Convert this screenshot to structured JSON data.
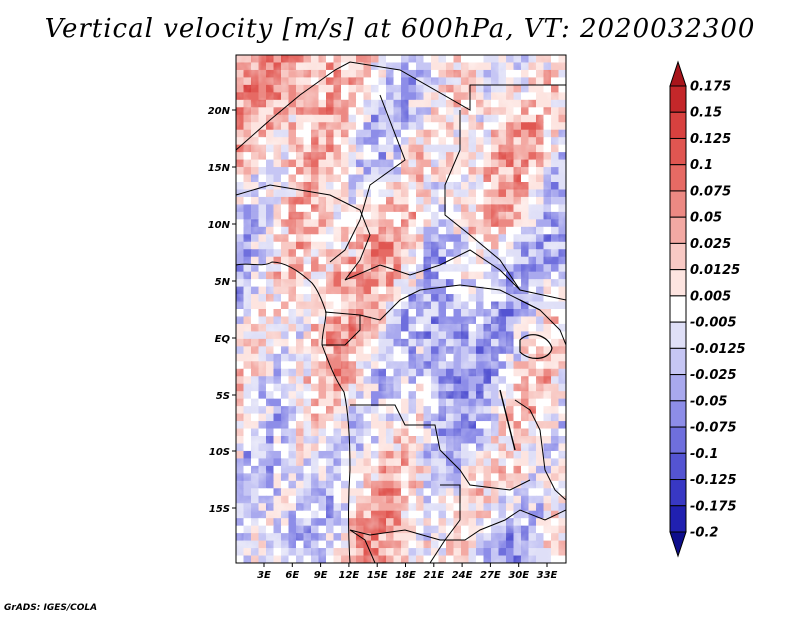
{
  "title": "Vertical velocity [m/s] at 600hPa, VT: 2020032300",
  "credit": "GrADS: IGES/COLA",
  "map": {
    "lat_ticks": [
      "20N",
      "15N",
      "10N",
      "5N",
      "EQ",
      "5S",
      "10S",
      "15S"
    ],
    "lon_ticks": [
      "3E",
      "6E",
      "9E",
      "12E",
      "15E",
      "18E",
      "21E",
      "24E",
      "27E",
      "30E",
      "33E"
    ],
    "field_description": "Vertical velocity at 600hPa over Central Africa"
  },
  "colorbar": {
    "levels": [
      "0.175",
      "0.15",
      "0.125",
      "0.1",
      "0.075",
      "0.05",
      "0.025",
      "0.0125",
      "0.005",
      "-0.005",
      "-0.0125",
      "-0.025",
      "-0.05",
      "-0.075",
      "-0.1",
      "-0.125",
      "-0.175",
      "-0.2"
    ],
    "colors": [
      "#a8151b",
      "#c4272a",
      "#d8413f",
      "#e05651",
      "#e66a64",
      "#ec8983",
      "#f3a9a3",
      "#f8c9c4",
      "#fde4e0",
      "#ffffff",
      "#dfdff7",
      "#c6c6f4",
      "#a9a9ee",
      "#8d8de8",
      "#6f6fdd",
      "#5454d2",
      "#3838c4",
      "#2020b0",
      "#0e0e8c"
    ]
  }
}
